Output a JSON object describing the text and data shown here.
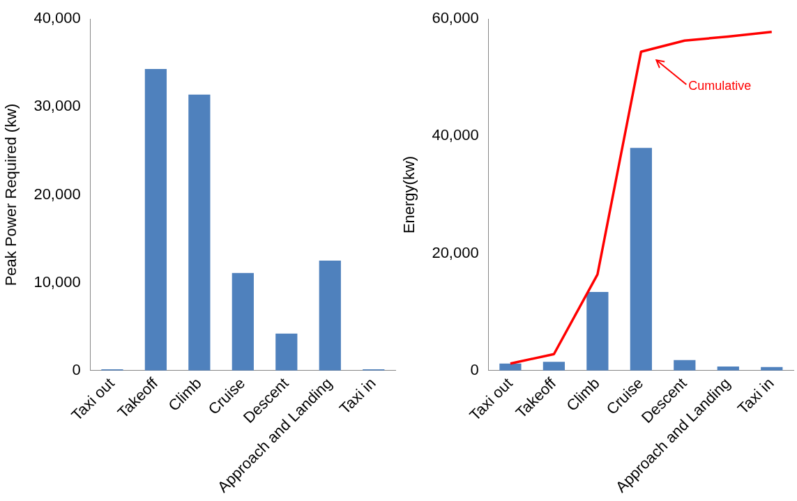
{
  "chart_data": [
    {
      "type": "bar",
      "ylabel": "Peak Power Required (kw)",
      "categories": [
        "Taxi out",
        "Takeoff",
        "Climb",
        "Cruise",
        "Descent",
        "Approach and Landing",
        "Taxi in"
      ],
      "values": [
        150,
        34300,
        31400,
        11100,
        4200,
        12500,
        150
      ],
      "color": "#4f81bd",
      "ylim": [
        0,
        40000
      ],
      "yticks": [
        {
          "value": 0,
          "label": "0"
        },
        {
          "value": 10000,
          "label": "10,000"
        },
        {
          "value": 20000,
          "label": "20,000"
        },
        {
          "value": 30000,
          "label": "30,000"
        },
        {
          "value": 40000,
          "label": "40,000"
        }
      ],
      "grid": false,
      "legend": false
    },
    {
      "type": "bar",
      "ylabel": "Energy(kw)",
      "categories": [
        "Taxi out",
        "Takeoff",
        "Climb",
        "Cruise",
        "Descent",
        "Approach and Landing",
        "Taxi in"
      ],
      "series": [
        {
          "color": "#4f81bd",
          "values": [
            1200,
            1500,
            13400,
            38000,
            1800,
            700,
            600
          ]
        },
        {
          "type": "line",
          "color": "#ff0000",
          "values": [
            1200,
            2800,
            16400,
            54400,
            56300,
            57000,
            57800
          ]
        }
      ],
      "annotations": [
        "Cumulative"
      ],
      "ylim": [
        0,
        60000
      ],
      "yticks": [
        {
          "value": 0,
          "label": "0"
        },
        {
          "value": 20000,
          "label": "20,000"
        },
        {
          "value": 40000,
          "label": "40,000"
        },
        {
          "value": 60000,
          "label": "60,000"
        }
      ],
      "grid": false,
      "legend": false,
      "marker": "none"
    }
  ]
}
